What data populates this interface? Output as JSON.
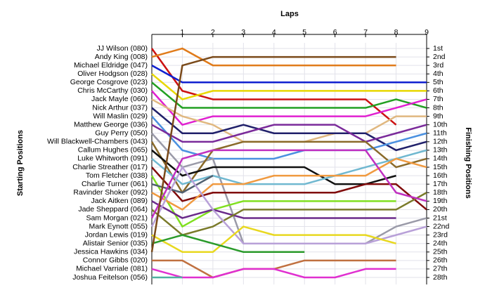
{
  "chart_data": {
    "type": "line",
    "title": "Laps",
    "y_label": "Starting Positions",
    "y2_label": "Finishing Positions",
    "x": [
      0,
      1,
      2,
      3,
      4,
      5,
      6,
      7,
      8,
      9
    ],
    "xlim": [
      0,
      9
    ],
    "xticks": [
      1,
      2,
      3,
      4,
      5,
      6,
      7,
      8,
      9
    ],
    "ylim": [
      1,
      28
    ],
    "invert_y": true,
    "grid": true,
    "yticks": [
      {
        "value": 1,
        "label": "1st"
      },
      {
        "value": 2,
        "label": "2nd"
      },
      {
        "value": 3,
        "label": "3rd"
      },
      {
        "value": 4,
        "label": "4th"
      },
      {
        "value": 5,
        "label": "5th"
      },
      {
        "value": 6,
        "label": "6th"
      },
      {
        "value": 7,
        "label": "7th"
      },
      {
        "value": 8,
        "label": "8th"
      },
      {
        "value": 9,
        "label": "9th"
      },
      {
        "value": 10,
        "label": "10th"
      },
      {
        "value": 11,
        "label": "11th"
      },
      {
        "value": 12,
        "label": "12th"
      },
      {
        "value": 13,
        "label": "13th"
      },
      {
        "value": 14,
        "label": "14th"
      },
      {
        "value": 15,
        "label": "15th"
      },
      {
        "value": 16,
        "label": "16th"
      },
      {
        "value": 17,
        "label": "17th"
      },
      {
        "value": 18,
        "label": "18th"
      },
      {
        "value": 19,
        "label": "19th"
      },
      {
        "value": 20,
        "label": "20th"
      },
      {
        "value": 21,
        "label": "21st"
      },
      {
        "value": 22,
        "label": "22nd"
      },
      {
        "value": 23,
        "label": "23rd"
      },
      {
        "value": 24,
        "label": "24th"
      },
      {
        "value": 25,
        "label": "25th"
      },
      {
        "value": 26,
        "label": "26th"
      },
      {
        "value": 27,
        "label": "27th"
      },
      {
        "value": 28,
        "label": "28th"
      }
    ],
    "series": [
      {
        "name": "JJ Wilson (080)",
        "color": "#cc1111",
        "values": [
          1,
          6,
          7,
          7,
          7,
          7,
          7,
          7,
          10,
          null
        ]
      },
      {
        "name": "Andy King (008)",
        "color": "#e07b1a",
        "values": [
          2,
          1,
          3,
          3,
          3,
          3,
          3,
          3,
          3,
          null
        ]
      },
      {
        "name": "Michael Eldridge (047)",
        "color": "#1020d0",
        "values": [
          3,
          5,
          5,
          5,
          5,
          5,
          5,
          5,
          5,
          5
        ]
      },
      {
        "name": "Oliver Hodgson (028)",
        "color": "#e8d800",
        "values": [
          4,
          7,
          6,
          6,
          6,
          6,
          6,
          6,
          6,
          6
        ]
      },
      {
        "name": "George Cosgrove (023)",
        "color": "#22a022",
        "values": [
          5,
          8,
          8,
          8,
          8,
          8,
          8,
          8,
          7,
          8
        ]
      },
      {
        "name": "Chris McCarthy (030)",
        "color": "#e020d0",
        "values": [
          6,
          10,
          9,
          9,
          9,
          9,
          9,
          9,
          8,
          7
        ]
      },
      {
        "name": "Jack Mayle (060)",
        "color": "#e0b880",
        "values": [
          7,
          9,
          10,
          12,
          12,
          12,
          11,
          11,
          9,
          9
        ]
      },
      {
        "name": "Nick Arthur (037)",
        "color": "#20206a",
        "values": [
          8,
          11,
          11,
          10,
          11,
          11,
          11,
          11,
          13,
          12
        ]
      },
      {
        "name": "Will Maslin (029)",
        "color": "#4a90e0",
        "values": [
          9,
          13,
          14,
          14,
          14,
          13,
          13,
          13,
          12,
          11
        ]
      },
      {
        "name": "Matthew George (036)",
        "color": "#7a2a9a",
        "values": [
          10,
          12,
          12,
          11,
          10,
          10,
          10,
          12,
          11,
          10
        ]
      },
      {
        "name": "Guy Perry (050)",
        "color": "#9a9aa8",
        "values": [
          11,
          15,
          14,
          24,
          24,
          24,
          24,
          24,
          22,
          21
        ]
      },
      {
        "name": "Will Blackwell-Chambers (043)",
        "color": "#8a6a2a",
        "values": [
          12,
          18,
          13,
          12,
          12,
          12,
          12,
          12,
          15,
          14
        ]
      },
      {
        "name": "Callum Hughes (065)",
        "color": "#101010",
        "values": [
          13,
          16,
          15,
          15,
          15,
          15,
          17,
          17,
          16,
          null
        ]
      },
      {
        "name": "Luke Whitworth (091)",
        "color": "#70b8d0",
        "values": [
          14,
          17,
          16,
          17,
          17,
          17,
          16,
          15,
          14,
          13
        ]
      },
      {
        "name": "Charlie Streather (017)",
        "color": "#800a0a",
        "values": [
          15,
          19,
          18,
          18,
          18,
          18,
          18,
          17,
          17,
          20
        ]
      },
      {
        "name": "Tom Fletcher (038)",
        "color": "#80e020",
        "values": [
          16,
          22,
          20,
          19,
          19,
          19,
          19,
          19,
          19,
          null
        ]
      },
      {
        "name": "Charlie Turner (061)",
        "color": "#506070",
        "values": [
          17,
          18,
          16,
          null,
          null,
          null,
          null,
          null,
          null,
          null
        ]
      },
      {
        "name": "Ravinder Shoker (092)",
        "color": "#f09a40",
        "values": [
          18,
          20,
          17,
          17,
          16,
          16,
          16,
          16,
          14,
          15
        ]
      },
      {
        "name": "Jack Aitken (089)",
        "color": "#6a2a8a",
        "values": [
          19,
          21,
          20,
          21,
          21,
          21,
          21,
          21,
          21,
          null
        ]
      },
      {
        "name": "Jade Sheppard (064)",
        "color": "#7a7a2a",
        "values": [
          20,
          23,
          22,
          20,
          20,
          20,
          20,
          20,
          20,
          18
        ]
      },
      {
        "name": "Sam Morgan (021)",
        "color": "#c030c0",
        "values": [
          21,
          14,
          13,
          13,
          13,
          13,
          13,
          13,
          18,
          19
        ]
      },
      {
        "name": "Mark Eynott (055)",
        "color": "#b8a0d8",
        "values": [
          22,
          15,
          20,
          24,
          24,
          24,
          24,
          24,
          23,
          22
        ]
      },
      {
        "name": "Jordan Lewis (019)",
        "color": "#e8d820",
        "values": [
          23,
          25,
          25,
          22,
          23,
          23,
          23,
          23,
          24,
          null
        ]
      },
      {
        "name": "Alistair Senior (035)",
        "color": "#2a9a2a",
        "values": [
          24,
          23,
          24,
          25,
          25,
          25,
          null,
          null,
          null,
          null
        ]
      },
      {
        "name": "Jessica Hawkins (034)",
        "color": "#7a4a1a",
        "values": [
          25,
          3,
          2,
          2,
          2,
          2,
          2,
          2,
          2,
          null
        ]
      },
      {
        "name": "Connor Gibbs (020)",
        "color": "#c07040",
        "values": [
          26,
          26,
          28,
          27,
          27,
          26,
          26,
          26,
          26,
          null
        ]
      },
      {
        "name": "Michael Varriale (081)",
        "color": "#e030d0",
        "values": [
          27,
          28,
          28,
          27,
          27,
          28,
          28,
          27,
          27,
          null
        ]
      },
      {
        "name": "Joshua Feitelson (056)",
        "color": "#50b0a0",
        "values": [
          28,
          28,
          null,
          null,
          null,
          null,
          null,
          null,
          null,
          null
        ]
      }
    ]
  }
}
